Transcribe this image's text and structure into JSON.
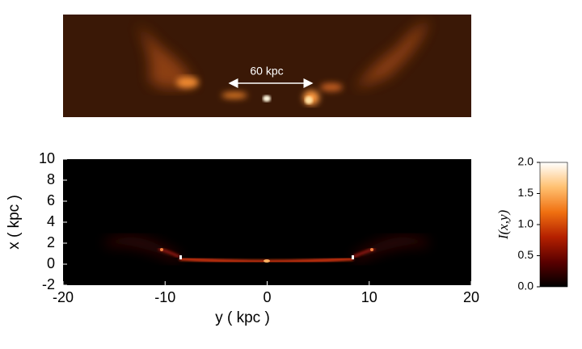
{
  "chart_data": [
    {
      "type": "image",
      "annotation": "60 kpc"
    },
    {
      "type": "image",
      "xlabel": "y ( kpc )",
      "ylabel": "x ( kpc )",
      "xlim": [
        -20,
        20
      ],
      "ylim": [
        -2,
        10
      ],
      "xticks": [
        -20,
        -10,
        0,
        10,
        20
      ],
      "yticks": [
        -2,
        0,
        2,
        4,
        6,
        8,
        10
      ],
      "colorbar_label": "I(x,y)",
      "clim": [
        0,
        2
      ],
      "colorbar_ticks": [
        {
          "value": 0,
          "label": "0.0"
        },
        {
          "value": 0.5,
          "label": "0.5"
        },
        {
          "value": 1,
          "label": "1.0"
        },
        {
          "value": 1.5,
          "label": "1.5"
        },
        {
          "value": 2,
          "label": "2.0"
        }
      ],
      "colormap": [
        "#000000",
        "#5a0000",
        "#b42000",
        "#f07010",
        "#ffc070",
        "#ffffff"
      ]
    }
  ]
}
